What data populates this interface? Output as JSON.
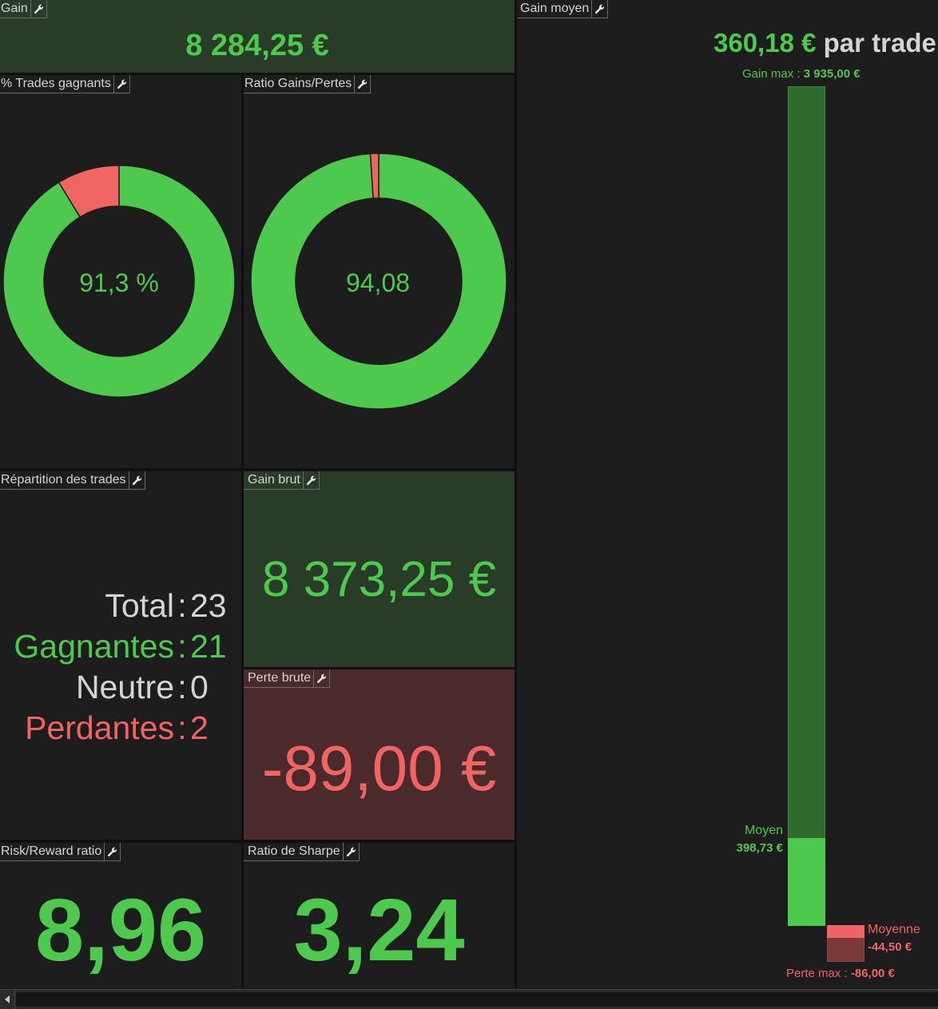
{
  "colors": {
    "green": "#4dc94d",
    "red": "#f06464",
    "panel_dark": "#1d1d1d",
    "panel_green": "#283c28",
    "panel_red": "#4a2a2a",
    "bar_dark_green": "#2f6a2f",
    "bar_dark_red": "#7a3a3a"
  },
  "gain": {
    "title": "Gain",
    "value": "8 284,25 €"
  },
  "win_pct": {
    "title": "% Trades gagnants",
    "center_label": "91,3 %",
    "fraction": 0.913
  },
  "ratio_gp": {
    "title": "Ratio Gains/Pertes",
    "center_label": "94,08",
    "loss_fraction": 0.0105
  },
  "gain_moyen": {
    "title": "Gain moyen",
    "value": "360,18 €",
    "suffix": "par trade",
    "gain_max_label": "Gain max : ",
    "gain_max_value": "3 935,00 €",
    "gain_max_amount": 3935,
    "moyen_label": "Moyen",
    "moyen_value": "398,73 €",
    "moyen_amount": 398.73,
    "moyenne_label": "Moyenne",
    "moyenne_value": "-44,50 €",
    "moyenne_amount": 44.5,
    "perte_max_label": "Perte max : ",
    "perte_max_value": "-86,00 €",
    "perte_max_amount": 86
  },
  "repartition": {
    "title": "Répartition des trades",
    "rows": [
      {
        "label": "Total",
        "sep": ":",
        "value": "23"
      },
      {
        "label": "Gagnantes",
        "sep": ":",
        "value": "21"
      },
      {
        "label": "Neutre",
        "sep": ":",
        "value": "0"
      },
      {
        "label": "Perdantes",
        "sep": ":",
        "value": "2"
      }
    ]
  },
  "gain_brut": {
    "title": "Gain brut",
    "value": "8 373,25 €"
  },
  "perte_brute": {
    "title": "Perte brute",
    "value": "-89,00 €"
  },
  "risk_reward": {
    "title": "Risk/Reward ratio",
    "value": "8,96"
  },
  "sharpe": {
    "title": "Ratio de Sharpe",
    "value": "3,24"
  }
}
